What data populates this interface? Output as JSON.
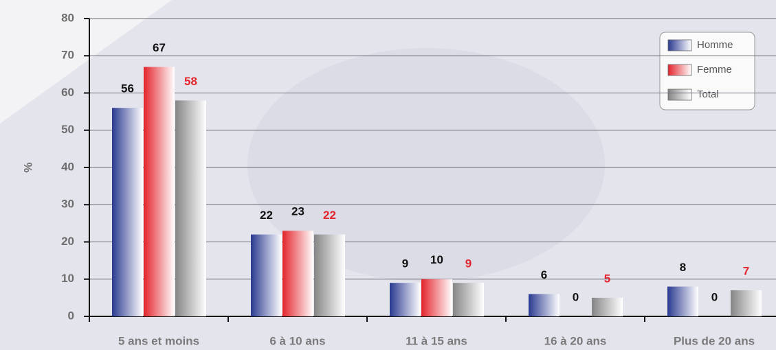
{
  "chart_data": {
    "type": "bar",
    "y_label": "%",
    "categories": [
      "5 ans et moins",
      "6 à 10 ans",
      "11 à 15 ans",
      "16 à 20 ans",
      "Plus de 20 ans"
    ],
    "series": [
      {
        "name": "Homme",
        "color": "#2a3a90",
        "label_color": "#111111",
        "values": [
          56,
          22,
          9,
          6,
          8
        ]
      },
      {
        "name": "Femme",
        "color": "#e3242c",
        "label_color": "#111111",
        "values": [
          67,
          23,
          10,
          0,
          0
        ]
      },
      {
        "name": "Total",
        "color": "#858585",
        "label_color": "#e3242c",
        "values": [
          58,
          22,
          9,
          5,
          7
        ]
      }
    ],
    "ylim": [
      0,
      80
    ],
    "yticks": [
      0,
      10,
      20,
      30,
      40,
      50,
      60,
      70,
      80
    ],
    "grid": true,
    "legend": "top-right"
  }
}
